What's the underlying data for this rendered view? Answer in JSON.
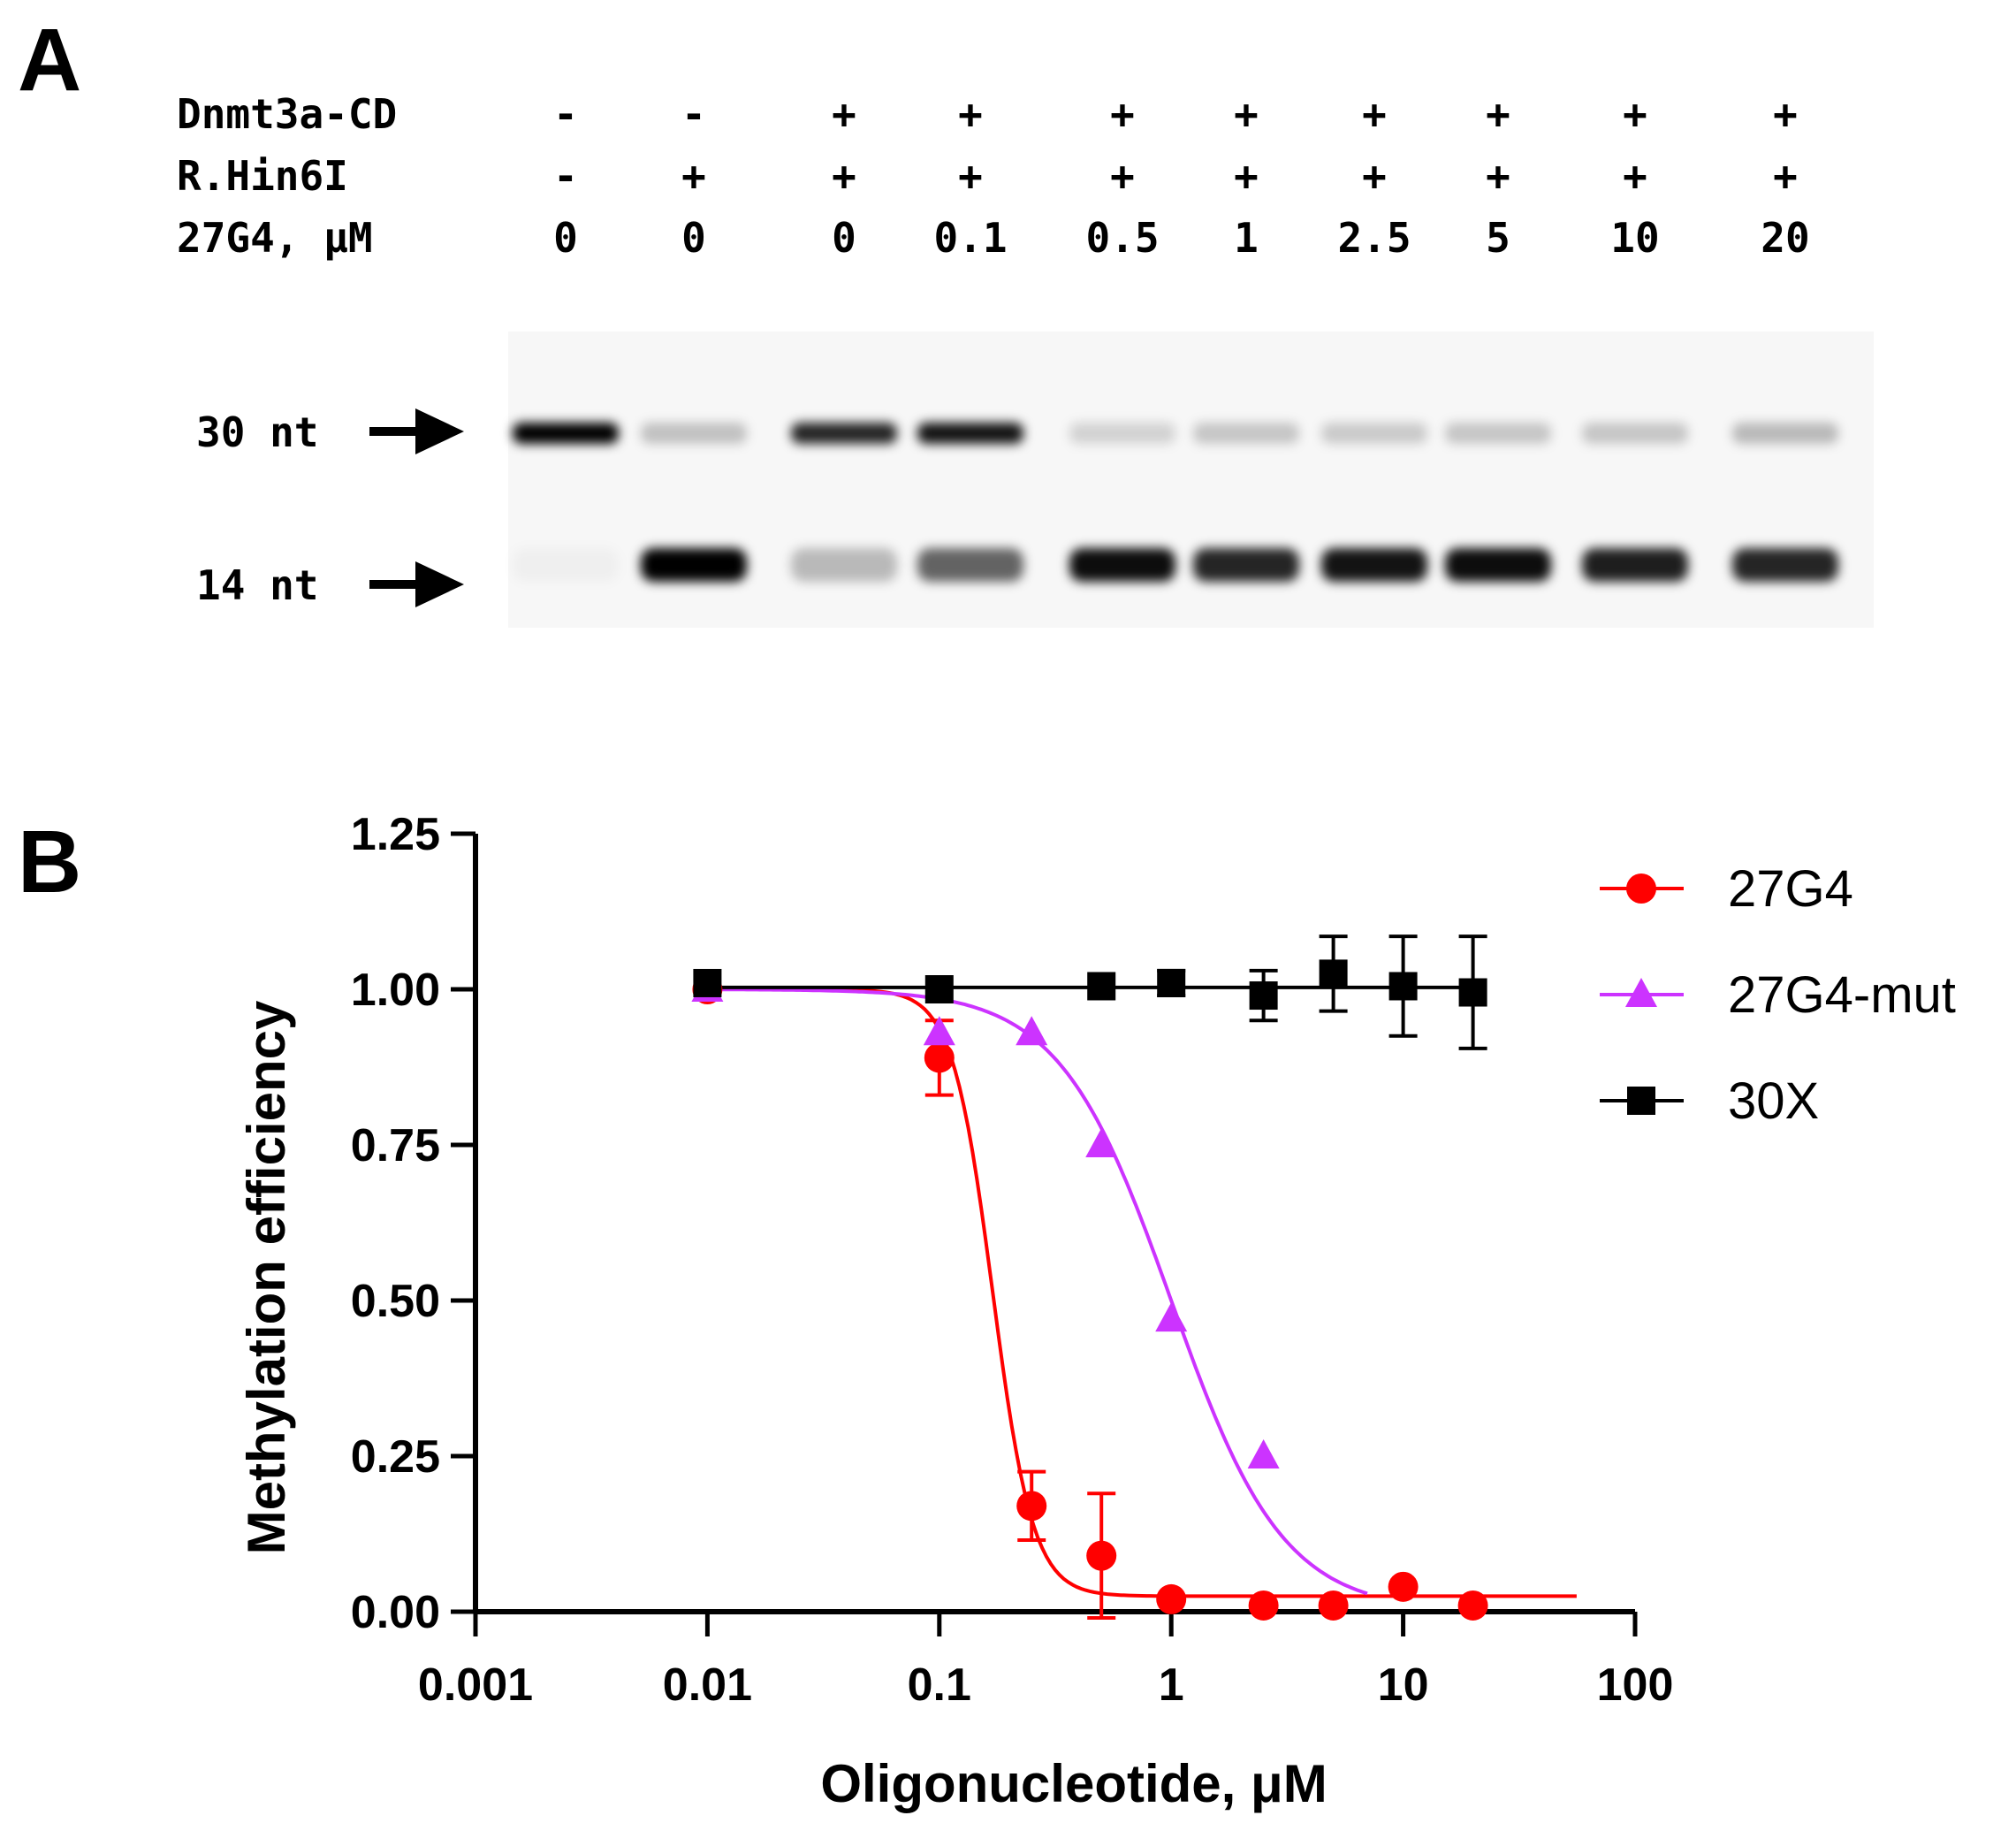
{
  "panelA": {
    "letter": "A",
    "row_labels": [
      "Dnmt3a-CD",
      "R.Hin6I",
      "27G4, μM"
    ],
    "lanes": [
      {
        "dnmt": "-",
        "hin": "-",
        "conc": "0",
        "top": 1.0,
        "bottom": 0.03
      },
      {
        "dnmt": "-",
        "hin": "+",
        "conc": "0",
        "top": 0.22,
        "bottom": 1.0
      },
      {
        "dnmt": "+",
        "hin": "+",
        "conc": "0",
        "top": 0.85,
        "bottom": 0.25
      },
      {
        "dnmt": "+",
        "hin": "+",
        "conc": "0.1",
        "top": 0.92,
        "bottom": 0.6
      },
      {
        "dnmt": "+",
        "hin": "+",
        "conc": "0.5",
        "top": 0.15,
        "bottom": 0.95
      },
      {
        "dnmt": "+",
        "hin": "+",
        "conc": "1",
        "top": 0.2,
        "bottom": 0.85
      },
      {
        "dnmt": "+",
        "hin": "+",
        "conc": "2.5",
        "top": 0.18,
        "bottom": 0.92
      },
      {
        "dnmt": "+",
        "hin": "+",
        "conc": "5",
        "top": 0.2,
        "bottom": 0.95
      },
      {
        "dnmt": "+",
        "hin": "+",
        "conc": "10",
        "top": 0.2,
        "bottom": 0.88
      },
      {
        "dnmt": "+",
        "hin": "+",
        "conc": "20",
        "top": 0.25,
        "bottom": 0.85
      }
    ],
    "band_labels": [
      "30 nt",
      "14 nt"
    ]
  },
  "panelB": {
    "letter": "B"
  },
  "chart_data": {
    "type": "scatter",
    "xlabel": "Oligonucleotide, μM",
    "ylabel": "Methylation efficiency",
    "x_scale": "log",
    "xlim": [
      0.001,
      100
    ],
    "ylim": [
      0,
      1.25
    ],
    "x_ticks": [
      "0.001",
      "0.01",
      "0.1",
      "1",
      "10",
      "100"
    ],
    "y_ticks": [
      "0.00",
      "0.25",
      "0.50",
      "0.75",
      "1.00",
      "1.25"
    ],
    "legend_position": "top-right",
    "series": [
      {
        "name": "27G4",
        "color": "#ff0000",
        "marker": "circle",
        "x": [
          0.01,
          0.1,
          0.25,
          0.5,
          1,
          2.5,
          5,
          10,
          20
        ],
        "y": [
          1.0,
          0.89,
          0.17,
          0.09,
          0.02,
          0.01,
          0.01,
          0.04,
          0.01
        ],
        "err": [
          0.0,
          0.06,
          0.055,
          0.1,
          0.0,
          0.0,
          0.0,
          0.0,
          0.0
        ],
        "fit": {
          "top": 1.0,
          "bottom": 0.025,
          "ic50": 0.17,
          "hill": 5
        }
      },
      {
        "name": "27G4-mut",
        "color": "#cc33ff",
        "marker": "triangle",
        "x": [
          0.01,
          0.1,
          0.25,
          0.5,
          1,
          2.5
        ],
        "y": [
          1.0,
          0.93,
          0.93,
          0.75,
          0.47,
          0.25
        ],
        "err": [
          0,
          0,
          0,
          0,
          0,
          0
        ],
        "fit": {
          "top": 1.0,
          "bottom": 0.0,
          "ic50": 1.0,
          "hill": 1.8
        }
      },
      {
        "name": "30X",
        "color": "#000000",
        "marker": "square",
        "x": [
          0.01,
          0.1,
          0.5,
          1,
          2.5,
          5,
          10,
          20
        ],
        "y": [
          1.01,
          1.0,
          1.005,
          1.01,
          0.99,
          1.025,
          1.005,
          0.995
        ],
        "err": [
          0,
          0,
          0,
          0.02,
          0.04,
          0.06,
          0.08,
          0.09
        ],
        "fit": {
          "flat": 1.003
        }
      }
    ]
  }
}
